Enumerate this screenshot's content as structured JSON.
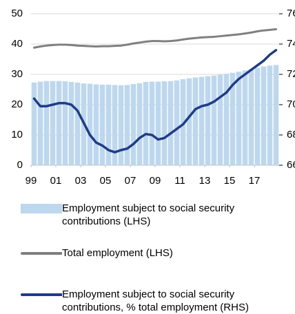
{
  "chart_data": {
    "type": "combo",
    "x": [
      1999.25,
      1999.75,
      2000.25,
      2000.75,
      2001.25,
      2001.75,
      2002.25,
      2002.75,
      2003.25,
      2003.75,
      2004.25,
      2004.75,
      2005.25,
      2005.75,
      2006.25,
      2006.75,
      2007.25,
      2007.75,
      2008.25,
      2008.75,
      2009.25,
      2009.75,
      2010.25,
      2010.75,
      2011.25,
      2011.75,
      2012.25,
      2012.75,
      2013.25,
      2013.75,
      2014.25,
      2014.75,
      2015.25,
      2015.75,
      2016.25,
      2016.75,
      2017.25,
      2017.75,
      2018.25,
      2018.75
    ],
    "xlim": [
      1999,
      2019
    ],
    "xticks": [
      {
        "value": 1999,
        "label": "99"
      },
      {
        "value": 2001,
        "label": "01"
      },
      {
        "value": 2003,
        "label": "03"
      },
      {
        "value": 2005,
        "label": "05"
      },
      {
        "value": 2007,
        "label": "07"
      },
      {
        "value": 2009,
        "label": "09"
      },
      {
        "value": 2011,
        "label": "11"
      },
      {
        "value": 2013,
        "label": "13"
      },
      {
        "value": 2015,
        "label": "15"
      },
      {
        "value": 2017,
        "label": "17"
      }
    ],
    "ylim": [
      0,
      50
    ],
    "yticks": [
      0,
      10,
      20,
      30,
      40,
      50
    ],
    "y2lim": [
      66,
      76
    ],
    "y2ticks": [
      66,
      68,
      70,
      72,
      74,
      76
    ],
    "grid": true,
    "series": [
      {
        "name": "Employment subject to social security contributions (LHS)",
        "type": "bar",
        "color": "#bdd7ee",
        "values": [
          27.3,
          27.6,
          27.8,
          27.8,
          27.8,
          27.7,
          27.5,
          27.3,
          27.0,
          26.9,
          26.7,
          26.6,
          26.6,
          26.5,
          26.4,
          26.5,
          26.8,
          27.1,
          27.5,
          27.6,
          27.6,
          27.7,
          27.8,
          28.0,
          28.4,
          28.7,
          29.0,
          29.2,
          29.4,
          29.6,
          29.9,
          30.2,
          30.5,
          30.9,
          31.3,
          31.7,
          32.2,
          32.6,
          32.9,
          33.1
        ]
      },
      {
        "name": "Total employment (LHS)",
        "type": "line",
        "color": "#7f7f7f",
        "values": [
          38.8,
          39.2,
          39.5,
          39.7,
          39.8,
          39.8,
          39.7,
          39.5,
          39.4,
          39.3,
          39.2,
          39.3,
          39.3,
          39.4,
          39.5,
          39.8,
          40.2,
          40.5,
          40.8,
          41.0,
          41.0,
          40.9,
          41.0,
          41.2,
          41.5,
          41.8,
          42.0,
          42.2,
          42.3,
          42.4,
          42.6,
          42.8,
          43.0,
          43.2,
          43.5,
          43.8,
          44.2,
          44.5,
          44.7,
          44.9
        ]
      },
      {
        "name": "Employment subject to social security contributions, % total employment (RHS)",
        "type": "line",
        "axis": "y2",
        "color": "#1f3c88",
        "values": [
          70.4,
          69.9,
          69.9,
          70.0,
          70.1,
          70.1,
          70.0,
          69.6,
          68.8,
          68.0,
          67.5,
          67.3,
          67.0,
          66.86,
          67.0,
          67.1,
          67.4,
          67.8,
          68.06,
          68.0,
          67.7,
          67.8,
          68.1,
          68.4,
          68.7,
          69.2,
          69.7,
          69.9,
          70.0,
          70.2,
          70.5,
          70.8,
          71.3,
          71.7,
          72.0,
          72.3,
          72.6,
          72.9,
          73.3,
          73.6
        ]
      }
    ]
  }
}
